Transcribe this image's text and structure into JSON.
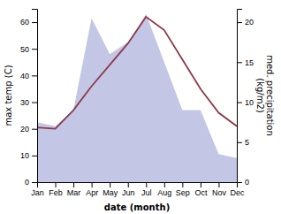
{
  "chart_data": {
    "type": "line",
    "categories": [
      "Jan",
      "Feb",
      "Mar",
      "Apr",
      "May",
      "Jun",
      "Jul",
      "Aug",
      "Sep",
      "Oct",
      "Nov",
      "Dec"
    ],
    "xlabel": "date (month)",
    "ylabel": "max temp (C)",
    "y2label": "med. precipitation\n(kg/m2)",
    "ylim": [
      0,
      65
    ],
    "yticks": [
      0,
      10,
      20,
      30,
      40,
      50,
      60
    ],
    "y2lim": [
      0,
      21.667
    ],
    "y2ticks": [
      0,
      5,
      10,
      15,
      20
    ],
    "series": [
      {
        "type": "area",
        "axis": "y2",
        "color": "#b8bcdf",
        "values": [
          7.5,
          7.0,
          9.0,
          20.5,
          16.0,
          17.5,
          21.0,
          15.0,
          9.0,
          9.0,
          3.5,
          3.0
        ]
      },
      {
        "type": "line",
        "color": "#8b3a4a",
        "values": [
          20.5,
          20.0,
          27.0,
          36.0,
          44.0,
          52.0,
          62.0,
          57.0,
          46.0,
          35.0,
          26.0,
          21.0
        ]
      }
    ]
  }
}
